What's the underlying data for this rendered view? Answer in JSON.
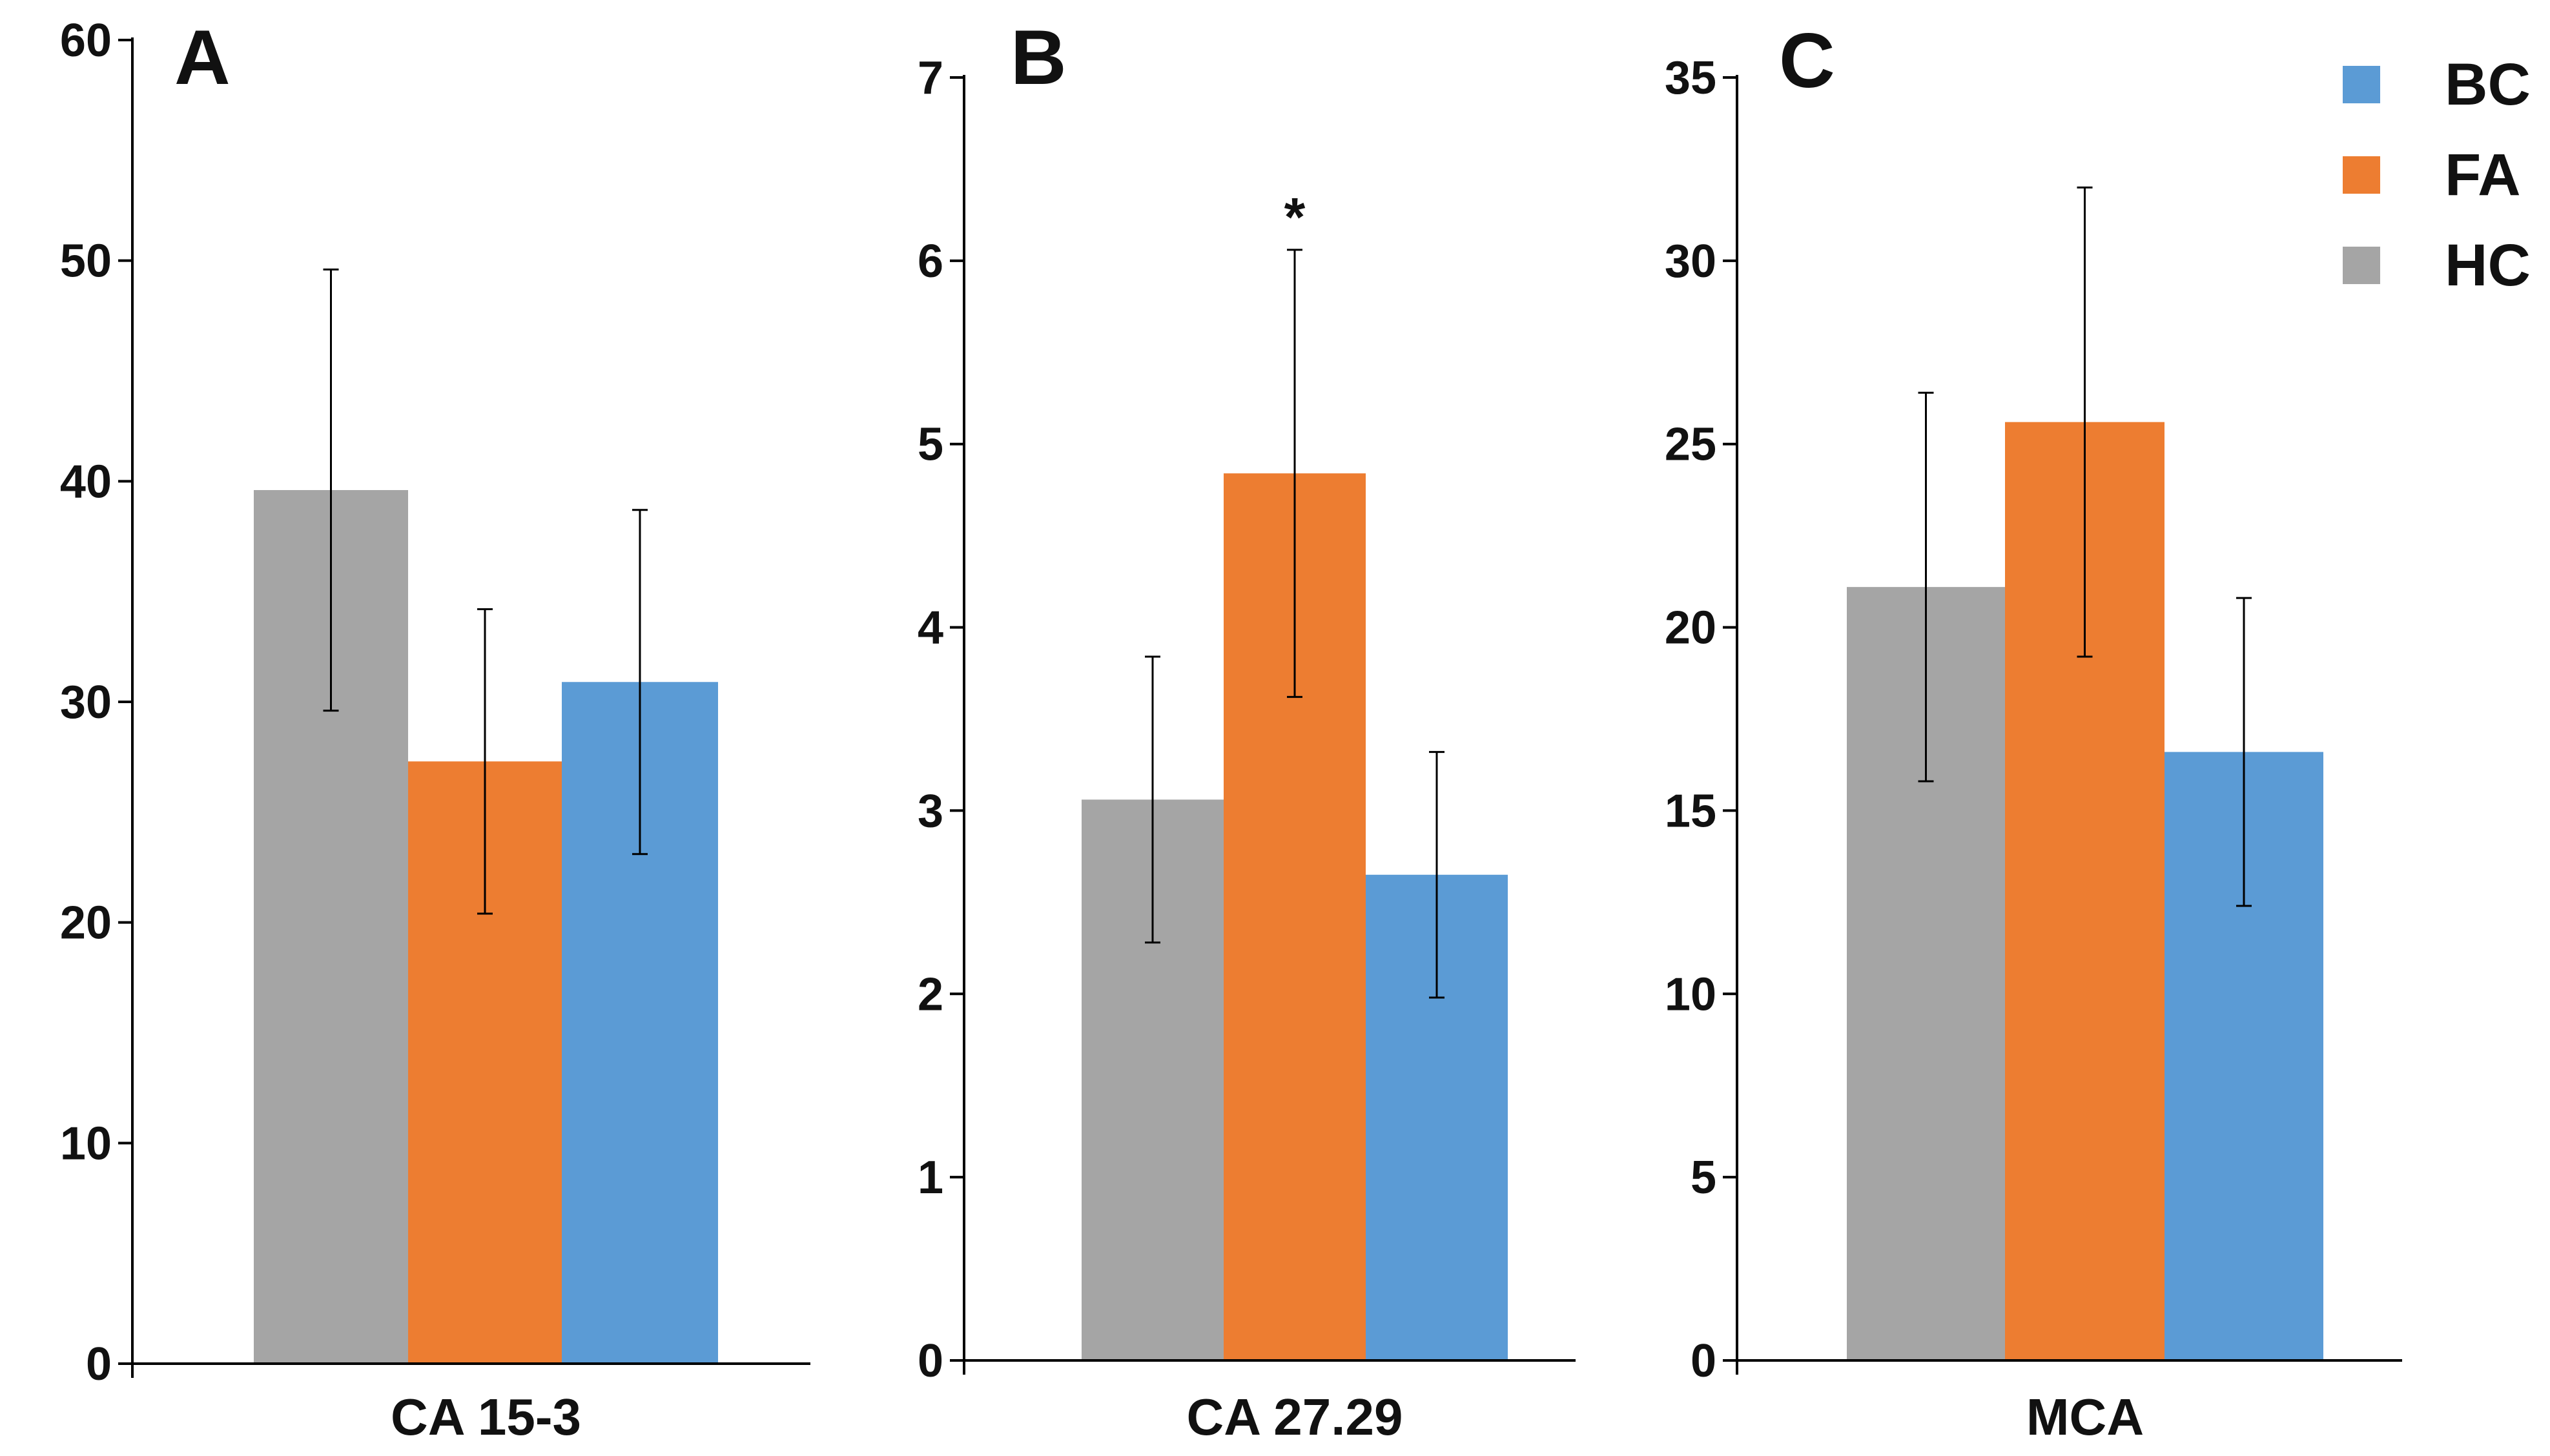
{
  "chart_data": [
    {
      "type": "bar",
      "panel_label": "A",
      "category": "CA 15-3",
      "ylim": [
        0,
        60
      ],
      "yticks": [
        "0",
        "10",
        "20",
        "30",
        "40",
        "50",
        "60"
      ],
      "series": [
        {
          "name": "HC",
          "value": 39.6,
          "error": 10.0
        },
        {
          "name": "FA",
          "value": 27.3,
          "error": 6.9
        },
        {
          "name": "BC",
          "value": 30.9,
          "error": 7.8
        }
      ],
      "annotations": []
    },
    {
      "type": "bar",
      "panel_label": "B",
      "category": "CA 27.29",
      "ylim": [
        0,
        7
      ],
      "yticks": [
        "0",
        "1",
        "2",
        "3",
        "4",
        "5",
        "6",
        "7"
      ],
      "series": [
        {
          "name": "HC",
          "value": 3.06,
          "error": 0.78
        },
        {
          "name": "FA",
          "value": 4.84,
          "error": 1.22
        },
        {
          "name": "BC",
          "value": 2.65,
          "error": 0.67
        }
      ],
      "annotations": [
        {
          "text": "*",
          "series": "FA"
        }
      ]
    },
    {
      "type": "bar",
      "panel_label": "C",
      "category": "MCA",
      "ylim": [
        0,
        35
      ],
      "yticks": [
        "0",
        "5",
        "10",
        "15",
        "20",
        "25",
        "30",
        "35"
      ],
      "series": [
        {
          "name": "HC",
          "value": 21.1,
          "error": 5.3
        },
        {
          "name": "FA",
          "value": 25.6,
          "error": 6.4
        },
        {
          "name": "BC",
          "value": 16.6,
          "error": 4.2
        }
      ],
      "annotations": []
    }
  ],
  "legend": [
    {
      "name": "BC",
      "color": "#5B9BD5"
    },
    {
      "name": "FA",
      "color": "#ED7D31"
    },
    {
      "name": "HC",
      "color": "#A5A5A5"
    }
  ],
  "colors": {
    "HC": "#A5A5A5",
    "FA": "#ED7D31",
    "BC": "#5B9BD5",
    "axis": "#000000"
  }
}
